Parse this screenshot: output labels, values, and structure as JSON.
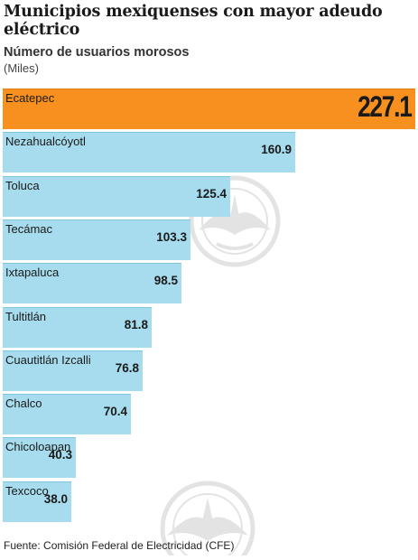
{
  "header": {
    "title": "Municipios mexiquenses con mayor adeudo eléctrico",
    "subtitle": "Número de usuarios morosos",
    "unit": "(Miles)"
  },
  "footer": {
    "source": "Fuente:  Comisión Federal de Electricidad (CFE)"
  },
  "colors": {
    "highlight": "#f7901e",
    "bar": "#a6dced",
    "bar_border": "#7ec6dc"
  },
  "watermark_icon": "eagle-emblem-icon",
  "chart_data": {
    "type": "bar",
    "orientation": "horizontal",
    "title": "Municipios mexiquenses con mayor adeudo eléctrico",
    "subtitle": "Número de usuarios morosos",
    "unit": "(Miles)",
    "categories": [
      "Ecatepec",
      "Nezahualcóyotl",
      "Toluca",
      "Tecámac",
      "Ixtapaluca",
      "Tultitlán",
      "Cuautitlán Izcalli",
      "Chalco",
      "Chicoloapan",
      "Texcoco"
    ],
    "values": [
      227.1,
      160.9,
      125.4,
      103.3,
      98.5,
      81.8,
      76.8,
      70.4,
      40.3,
      38.0
    ],
    "value_labels": [
      "227.1",
      "160.9",
      "125.4",
      "103.3",
      "98.5",
      "81.8",
      "76.8",
      "70.4",
      "40.3",
      "38.0"
    ],
    "highlighted": "Ecatepec",
    "xlim": [
      0,
      227.1
    ],
    "grid": false,
    "legend": "none"
  }
}
